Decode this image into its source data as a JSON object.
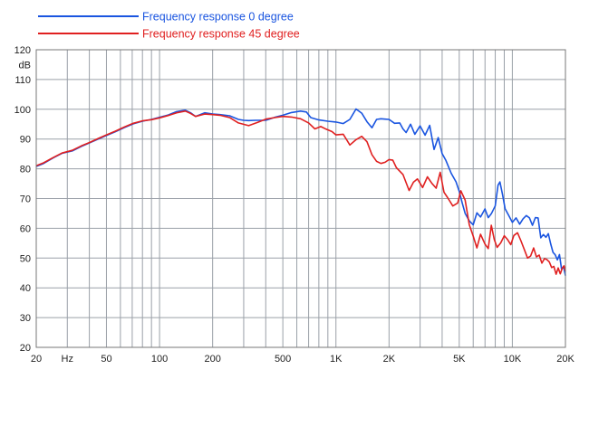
{
  "chart_data": {
    "type": "line",
    "x_scale": "log",
    "xlim": [
      20,
      20000
    ],
    "ylim": [
      20,
      120
    ],
    "ylabel": "dB",
    "xlabel": "Hz",
    "grid": true,
    "legend_position": "top-left",
    "x_tick_labels": [
      {
        "x": 20,
        "label": "20"
      },
      {
        "x": 30,
        "label": "Hz"
      },
      {
        "x": 50,
        "label": "50"
      },
      {
        "x": 100,
        "label": "100"
      },
      {
        "x": 200,
        "label": "200"
      },
      {
        "x": 500,
        "label": "500"
      },
      {
        "x": 1000,
        "label": "1K"
      },
      {
        "x": 2000,
        "label": "2K"
      },
      {
        "x": 5000,
        "label": "5K"
      },
      {
        "x": 10000,
        "label": "10K"
      },
      {
        "x": 20000,
        "label": "20K"
      }
    ],
    "y_tick_labels": [
      {
        "y": 120,
        "label": "120"
      },
      {
        "y": 110,
        "label": "110"
      },
      {
        "y": 100,
        "label": "100"
      },
      {
        "y": 90,
        "label": "90"
      },
      {
        "y": 80,
        "label": "80"
      },
      {
        "y": 70,
        "label": "70"
      },
      {
        "y": 60,
        "label": "60"
      },
      {
        "y": 50,
        "label": "50"
      },
      {
        "y": 40,
        "label": "40"
      },
      {
        "y": 30,
        "label": "30"
      },
      {
        "y": 20,
        "label": "20"
      }
    ],
    "series": [
      {
        "name": "Frequency response 0 degree",
        "color": "#1a55e0",
        "x": [
          20,
          22,
          25,
          28,
          32,
          36,
          40,
          45,
          50,
          56,
          63,
          71,
          80,
          90,
          100,
          112,
          125,
          140,
          150,
          160,
          180,
          200,
          220,
          250,
          280,
          300,
          320,
          350,
          400,
          450,
          500,
          560,
          630,
          680,
          720,
          800,
          900,
          1000,
          1100,
          1200,
          1300,
          1400,
          1500,
          1600,
          1700,
          1800,
          1900,
          2000,
          2150,
          2300,
          2400,
          2500,
          2650,
          2800,
          3000,
          3200,
          3400,
          3600,
          3800,
          4000,
          4200,
          4500,
          4800,
          5000,
          5200,
          5400,
          5700,
          6000,
          6300,
          6600,
          7000,
          7300,
          7600,
          8000,
          8300,
          8500,
          8800,
          9100,
          9500,
          10000,
          10500,
          11000,
          11500,
          12000,
          12500,
          13000,
          13500,
          14000,
          14500,
          15000,
          15500,
          16000,
          16500,
          17000,
          17500,
          18000,
          18500,
          19000,
          19500,
          20000
        ],
        "y": [
          80.8,
          81.8,
          83.7,
          85.2,
          86.0,
          87.5,
          88.7,
          90.0,
          91.2,
          92.4,
          93.8,
          95.1,
          96.0,
          96.6,
          97.3,
          98.1,
          99.2,
          99.7,
          98.8,
          97.6,
          98.8,
          98.4,
          98.2,
          97.8,
          96.6,
          96.3,
          96.2,
          96.3,
          96.3,
          97.3,
          98.0,
          98.9,
          99.4,
          99.1,
          97.2,
          96.4,
          96.0,
          95.7,
          95.2,
          96.6,
          100.1,
          98.7,
          95.8,
          93.8,
          96.6,
          96.8,
          96.7,
          96.6,
          95.3,
          95.4,
          93.4,
          92.2,
          95.0,
          91.6,
          94.4,
          91.3,
          94.6,
          86.5,
          90.5,
          85.1,
          82.8,
          78.5,
          75.6,
          72.4,
          68.5,
          65.0,
          62.5,
          61.2,
          65.2,
          63.8,
          66.5,
          63.6,
          64.9,
          67.5,
          74.5,
          75.6,
          71.3,
          66.6,
          64.5,
          62.0,
          63.5,
          61.4,
          63.2,
          64.3,
          63.5,
          61.0,
          63.6,
          63.5,
          56.8,
          57.9,
          57.0,
          58.2,
          54.8,
          51.9,
          51.1,
          49.4,
          51.2,
          46.3,
          47.1,
          44.1
        ]
      },
      {
        "name": "Frequency response 45 degree",
        "color": "#e02020",
        "x": [
          20,
          22,
          25,
          28,
          32,
          36,
          40,
          45,
          50,
          56,
          63,
          71,
          80,
          90,
          100,
          112,
          125,
          140,
          150,
          160,
          180,
          200,
          220,
          250,
          280,
          320,
          360,
          400,
          450,
          500,
          560,
          630,
          700,
          760,
          820,
          880,
          950,
          1000,
          1100,
          1200,
          1300,
          1400,
          1500,
          1600,
          1700,
          1800,
          1900,
          2000,
          2100,
          2200,
          2400,
          2600,
          2750,
          2900,
          3100,
          3300,
          3500,
          3700,
          3900,
          4100,
          4300,
          4600,
          4900,
          5100,
          5400,
          5700,
          6000,
          6300,
          6600,
          7000,
          7300,
          7600,
          7900,
          8200,
          8600,
          9000,
          9400,
          9800,
          10200,
          10700,
          11200,
          11700,
          12200,
          12700,
          13200,
          13700,
          14200,
          14700,
          15200,
          15700,
          16200,
          16700,
          17200,
          17700,
          18200,
          18700,
          19200,
          19600,
          20000
        ],
        "y": [
          81.0,
          82.0,
          83.8,
          85.3,
          86.2,
          87.7,
          88.8,
          90.2,
          91.4,
          92.6,
          94.0,
          95.3,
          96.1,
          96.5,
          97.1,
          97.9,
          98.8,
          99.4,
          98.6,
          97.6,
          98.4,
          98.2,
          98.0,
          97.2,
          95.4,
          94.5,
          95.6,
          96.7,
          97.2,
          97.6,
          97.4,
          96.8,
          95.4,
          93.4,
          94.2,
          93.3,
          92.5,
          91.4,
          91.6,
          88.0,
          89.8,
          90.9,
          89.1,
          84.7,
          82.5,
          81.8,
          82.2,
          83.1,
          82.9,
          80.4,
          78.1,
          72.7,
          75.5,
          76.6,
          73.7,
          77.3,
          75.1,
          73.5,
          78.8,
          72.1,
          70.3,
          67.5,
          68.5,
          72.6,
          69.5,
          61.2,
          57.4,
          53.4,
          58.0,
          54.7,
          53.2,
          61.0,
          56.2,
          53.6,
          55.1,
          57.5,
          56.2,
          54.5,
          57.6,
          58.5,
          55.7,
          52.8,
          50.0,
          50.7,
          53.4,
          50.4,
          51.0,
          48.3,
          49.8,
          49.5,
          48.7,
          46.8,
          47.2,
          44.6,
          46.7,
          44.7,
          46.6,
          47.4,
          45.6
        ]
      }
    ]
  }
}
